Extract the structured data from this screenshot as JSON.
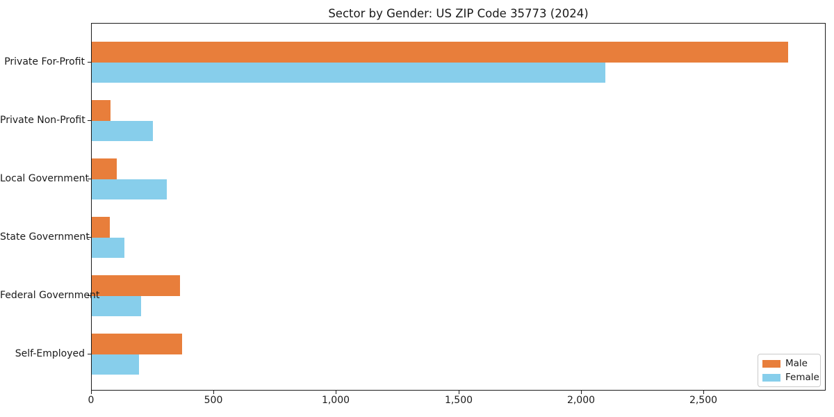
{
  "chart_data": {
    "type": "bar",
    "orientation": "horizontal",
    "title": "Sector by Gender: US ZIP Code 35773 (2024)",
    "categories": [
      "Private For-Profit",
      "Private Non-Profit",
      "Local Government",
      "State Government",
      "Federal Government",
      "Self-Employed"
    ],
    "series": [
      {
        "name": "Male",
        "color": "#e87e3b",
        "values": [
          2850,
          78,
          102,
          73,
          360,
          370
        ]
      },
      {
        "name": "Female",
        "color": "#87ceeb",
        "values": [
          2100,
          250,
          308,
          134,
          202,
          193
        ]
      }
    ],
    "xlabel": "",
    "ylabel": "",
    "xlim": [
      0,
      3000
    ],
    "x_ticks": [
      0,
      500,
      1000,
      1500,
      2000,
      2500
    ],
    "x_tick_labels": [
      "0",
      "500",
      "1,000",
      "1,500",
      "2,000",
      "2,500"
    ],
    "grid": false,
    "legend_position": "lower right",
    "colors": {
      "male": "#e87e3b",
      "female": "#87ceeb",
      "axis": "#1a1a1a",
      "background": "#ffffff"
    }
  }
}
